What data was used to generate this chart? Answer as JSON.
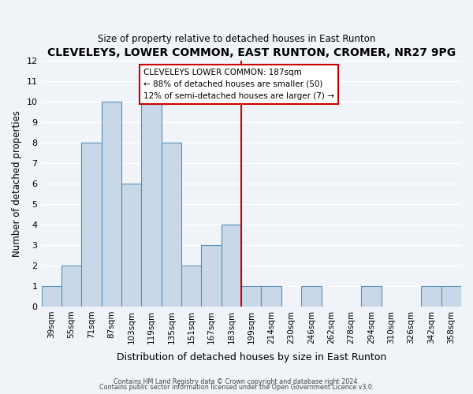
{
  "title": "CLEVELEYS, LOWER COMMON, EAST RUNTON, CROMER, NR27 9PG",
  "subtitle": "Size of property relative to detached houses in East Runton",
  "xlabel": "Distribution of detached houses by size in East Runton",
  "ylabel": "Number of detached properties",
  "bar_labels": [
    "39sqm",
    "55sqm",
    "71sqm",
    "87sqm",
    "103sqm",
    "119sqm",
    "135sqm",
    "151sqm",
    "167sqm",
    "183sqm",
    "199sqm",
    "214sqm",
    "230sqm",
    "246sqm",
    "262sqm",
    "278sqm",
    "294sqm",
    "310sqm",
    "326sqm",
    "342sqm",
    "358sqm"
  ],
  "bar_values": [
    1,
    2,
    8,
    10,
    6,
    10,
    8,
    2,
    3,
    4,
    1,
    1,
    0,
    1,
    0,
    0,
    1,
    0,
    0,
    1,
    1
  ],
  "bar_color": "#c8d8e8",
  "bar_edge_color": "#5590bb",
  "vline_x": 9.5,
  "vline_color": "#cc0000",
  "ylim": [
    0,
    12
  ],
  "yticks": [
    0,
    1,
    2,
    3,
    4,
    5,
    6,
    7,
    8,
    9,
    10,
    11,
    12
  ],
  "annotation_title": "CLEVELEYS LOWER COMMON: 187sqm",
  "annotation_line1": "← 88% of detached houses are smaller (50)",
  "annotation_line2": "12% of semi-detached houses are larger (7) →",
  "annotation_box_edge": "#cc0000",
  "footer1": "Contains HM Land Registry data © Crown copyright and database right 2024.",
  "footer2": "Contains public sector information licensed under the Open Government Licence v3.0.",
  "background_color": "#f0f4f8",
  "grid_color": "#ffffff"
}
